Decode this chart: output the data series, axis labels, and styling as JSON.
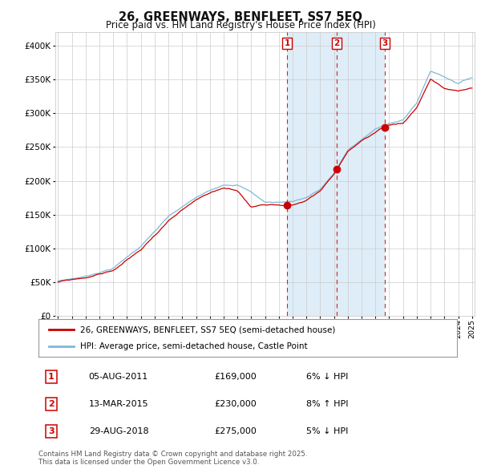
{
  "title": "26, GREENWAYS, BENFLEET, SS7 5EQ",
  "subtitle": "Price paid vs. HM Land Registry's House Price Index (HPI)",
  "legend_line1": "26, GREENWAYS, BENFLEET, SS7 5EQ (semi-detached house)",
  "legend_line2": "HPI: Average price, semi-detached house, Castle Point",
  "footer": "Contains HM Land Registry data © Crown copyright and database right 2025.\nThis data is licensed under the Open Government Licence v3.0.",
  "transactions": [
    {
      "num": 1,
      "date": "05-AUG-2011",
      "year": 2011.59,
      "price": 169000,
      "pct": "6%",
      "dir": "↓"
    },
    {
      "num": 2,
      "date": "13-MAR-2015",
      "year": 2015.19,
      "price": 230000,
      "pct": "8%",
      "dir": "↑"
    },
    {
      "num": 3,
      "date": "29-AUG-2018",
      "year": 2018.66,
      "price": 275000,
      "pct": "5%",
      "dir": "↓"
    }
  ],
  "ylim": [
    0,
    420000
  ],
  "yticks": [
    0,
    50000,
    100000,
    150000,
    200000,
    250000,
    300000,
    350000,
    400000
  ],
  "ytick_labels": [
    "£0",
    "£50K",
    "£100K",
    "£150K",
    "£200K",
    "£250K",
    "£300K",
    "£350K",
    "£400K"
  ],
  "start_year": 1995,
  "end_year": 2025,
  "hpi_color": "#7db8d8",
  "price_color": "#cc0000",
  "span_color": "#deedf7",
  "grid_color": "#cccccc",
  "title_color": "#111111"
}
